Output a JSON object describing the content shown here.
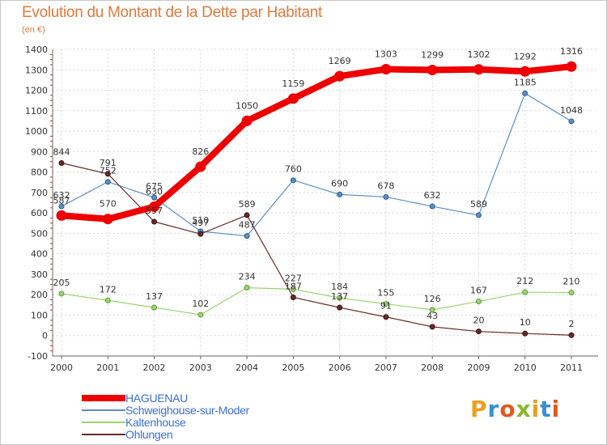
{
  "header": {
    "title": "Evolution du Montant de la Dette par Habitant",
    "unit": "(en €)"
  },
  "brand": {
    "text": "Proxiti",
    "colors": [
      "#e8a020",
      "#3a8fd0",
      "#e05a20",
      "#8ab82e",
      "#e8a020",
      "#3a8fd0",
      "#e05a20"
    ]
  },
  "chart_data": {
    "type": "line",
    "title": "Evolution du Montant de la Dette par Habitant",
    "subtitle": "(en €)",
    "xlabel": "",
    "ylabel": "",
    "x": [
      "2000",
      "2001",
      "2002",
      "2003",
      "2004",
      "2005",
      "2006",
      "2007",
      "2008",
      "2009",
      "2010",
      "2011"
    ],
    "ylim": [
      -100,
      1400
    ],
    "yticks": [
      -100,
      0,
      100,
      200,
      300,
      400,
      500,
      600,
      700,
      800,
      900,
      1000,
      1100,
      1200,
      1300,
      1400
    ],
    "grid": true,
    "legend": "bottom-left",
    "series": [
      {
        "name": "HAGUENAU",
        "color": "#ee0000",
        "values": [
          587,
          570,
          630,
          826,
          1050,
          1159,
          1269,
          1303,
          1299,
          1302,
          1292,
          1316
        ]
      },
      {
        "name": "Schweighouse-sur-Moder",
        "color": "#5b8fc7",
        "values": [
          632,
          752,
          675,
          510,
          487,
          760,
          690,
          678,
          632,
          589,
          1185,
          1048
        ]
      },
      {
        "name": "Kaltenhouse",
        "color": "#9ad46e",
        "values": [
          205,
          172,
          137,
          102,
          234,
          227,
          184,
          155,
          126,
          167,
          212,
          210
        ]
      },
      {
        "name": "Ohlungen",
        "color": "#6b2a2a",
        "values": [
          844,
          791,
          557,
          497,
          589,
          187,
          137,
          91,
          43,
          20,
          10,
          2
        ]
      }
    ]
  }
}
